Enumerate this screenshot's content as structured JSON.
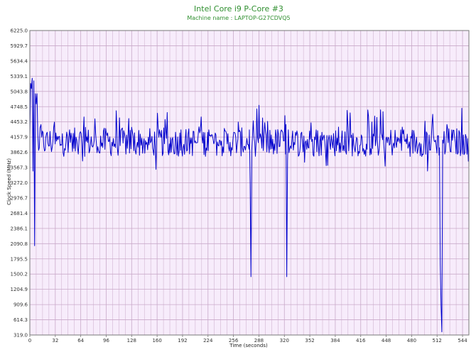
{
  "chart_data": {
    "type": "line",
    "title": "Intel Core i9 P-Core #3",
    "subtitle": "Machine name : LAPTOP-G27CDVQ5",
    "xlabel": "Time (seconds)",
    "ylabel": "Clock Speed (MHz)",
    "xlim": [
      0,
      552
    ],
    "ylim": [
      319.0,
      6225.0
    ],
    "x_ticks": [
      "0",
      "32",
      "64",
      "96",
      "128",
      "160",
      "192",
      "224",
      "256",
      "288",
      "320",
      "352",
      "384",
      "416",
      "448",
      "480",
      "512",
      "544"
    ],
    "y_ticks": [
      "319.0",
      "614.3",
      "909.6",
      "1204.9",
      "1500.2",
      "1795.5",
      "2090.8",
      "2386.1",
      "2681.4",
      "2976.7",
      "3272.0",
      "3567.3",
      "3862.6",
      "4157.9",
      "4453.2",
      "4748.5",
      "5043.8",
      "5339.1",
      "5634.4",
      "5929.7",
      "6225.0"
    ],
    "grid": true,
    "legend": "none",
    "series": [
      {
        "baseline": 4060,
        "spread": 280,
        "points": [
          [
            0,
            4150
          ],
          [
            1,
            5200
          ],
          [
            2,
            5100
          ],
          [
            3,
            5300
          ],
          [
            4,
            3500
          ],
          [
            5,
            5250
          ],
          [
            6,
            2050
          ],
          [
            7,
            5000
          ],
          [
            8,
            4800
          ],
          [
            9,
            5000
          ],
          [
            10,
            4200
          ],
          [
            11,
            3900
          ],
          [
            14,
            4400
          ],
          [
            20,
            4150
          ],
          [
            30,
            4350
          ],
          [
            40,
            4000
          ],
          [
            50,
            4300
          ],
          [
            60,
            3950
          ],
          [
            70,
            4350
          ],
          [
            80,
            4000
          ],
          [
            96,
            4250
          ],
          [
            110,
            3950
          ],
          [
            128,
            4350
          ],
          [
            140,
            4000
          ],
          [
            155,
            3900
          ],
          [
            163,
            4300
          ],
          [
            170,
            4500
          ],
          [
            176,
            3850
          ],
          [
            190,
            4300
          ],
          [
            210,
            4050
          ],
          [
            225,
            4300
          ],
          [
            240,
            4000
          ],
          [
            262,
            4450
          ],
          [
            272,
            4000
          ],
          [
            276,
            4300
          ],
          [
            277,
            3250
          ],
          [
            278,
            1450
          ],
          [
            279,
            3900
          ],
          [
            280,
            4200
          ],
          [
            300,
            4000
          ],
          [
            318,
            4250
          ],
          [
            322,
            4400
          ],
          [
            323,
            1450
          ],
          [
            324,
            3700
          ],
          [
            325,
            4300
          ],
          [
            340,
            4000
          ],
          [
            360,
            4300
          ],
          [
            380,
            4050
          ],
          [
            400,
            4350
          ],
          [
            415,
            4000
          ],
          [
            430,
            4450
          ],
          [
            440,
            4100
          ],
          [
            444,
            4650
          ],
          [
            452,
            4000
          ],
          [
            470,
            4300
          ],
          [
            490,
            4050
          ],
          [
            495,
            3900
          ],
          [
            500,
            3500
          ],
          [
            502,
            4200
          ],
          [
            510,
            4100
          ],
          [
            515,
            3950
          ],
          [
            516,
            1700
          ],
          [
            517,
            880
          ],
          [
            518,
            380
          ],
          [
            519,
            4100
          ],
          [
            525,
            4350
          ],
          [
            535,
            4050
          ],
          [
            545,
            4200
          ],
          [
            552,
            4000
          ]
        ],
        "color": "#0000cc"
      }
    ],
    "colors": {
      "plot_background": "#f7ecfb",
      "grid": "#c9a9c9",
      "line": "#0000cc",
      "title": "#2f8f2f"
    }
  }
}
